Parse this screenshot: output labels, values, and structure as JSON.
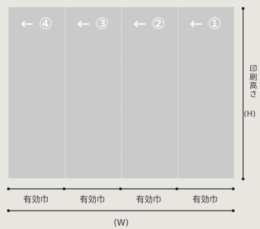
{
  "panel": {
    "labels": [
      "← ④",
      "← ③",
      "← ②",
      "← ①"
    ]
  },
  "dimensions": {
    "effective_width_label": "有効巾",
    "total_width_label": "(W)",
    "height_label_chars": [
      "印",
      "刷",
      "高",
      "さ"
    ],
    "height_unit": "(H)"
  },
  "colors": {
    "background": "#e8e6e0",
    "panel": "#c9cac9",
    "lines": "#222222"
  }
}
